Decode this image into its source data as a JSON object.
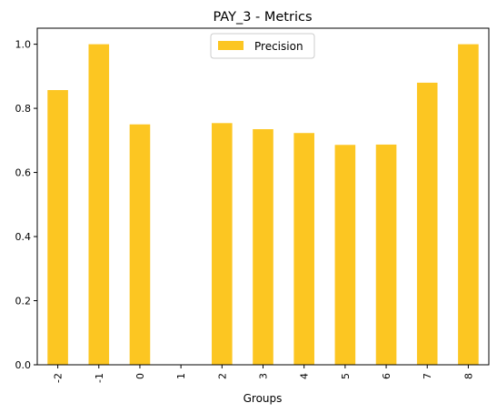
{
  "chart_data": {
    "type": "bar",
    "title": "PAY_3 - Metrics",
    "xlabel": "Groups",
    "ylabel": "",
    "categories": [
      "-2",
      "-1",
      "0",
      "1",
      "2",
      "3",
      "4",
      "5",
      "6",
      "7",
      "8"
    ],
    "series": [
      {
        "name": "Precision",
        "color": "#fcc622",
        "values": [
          0.857,
          1.0,
          0.75,
          0.0,
          0.754,
          0.735,
          0.723,
          0.686,
          0.687,
          0.88,
          1.0
        ]
      }
    ],
    "ylim": [
      0,
      1.05
    ],
    "yticks": [
      "0.0",
      "0.2",
      "0.4",
      "0.6",
      "0.8",
      "1.0"
    ],
    "grid": false,
    "legend_position": "top-center"
  }
}
